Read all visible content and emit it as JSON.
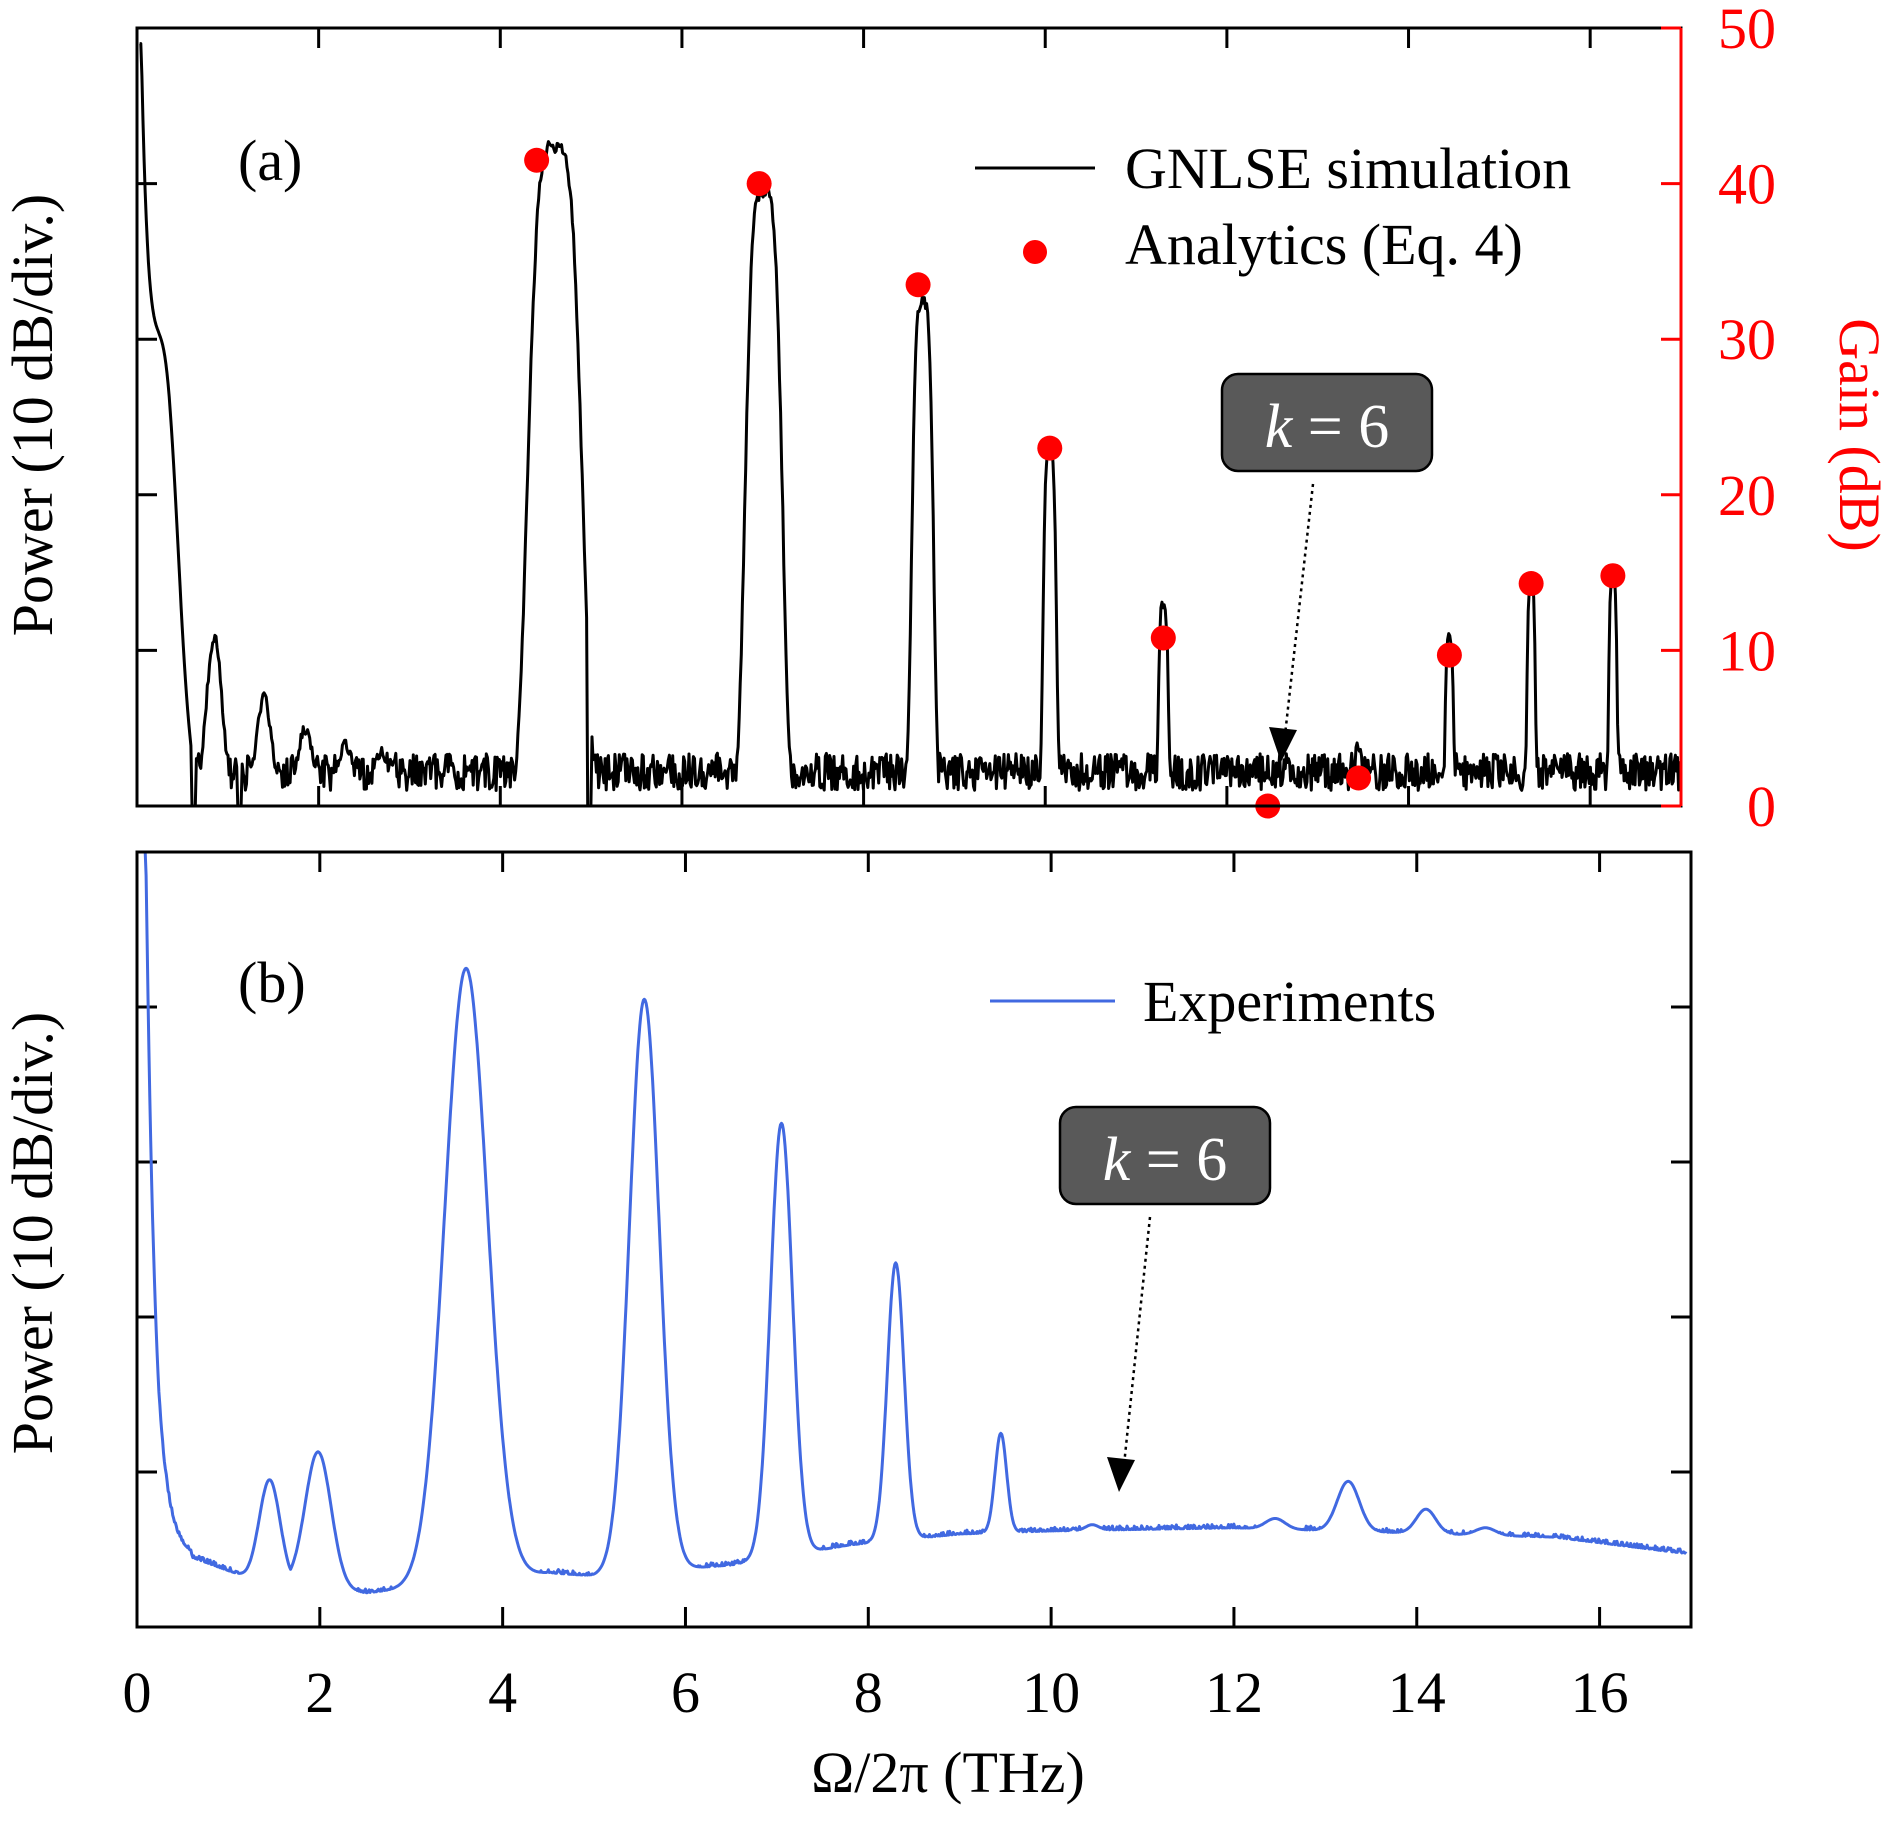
{
  "chart_data": [
    {
      "panel": "(a)",
      "type": "line",
      "xlim": [
        0,
        17
      ],
      "ylim": [
        0,
        50
      ],
      "ylabel": "Power (10 dB/div.)",
      "y2label": "Gain (dB)",
      "y2_ticks": [
        "0",
        "10",
        "20",
        "30",
        "40",
        "50"
      ],
      "grid": false,
      "legend": "top-right",
      "colors": {
        "simulation": "#000000",
        "analytics": "#ff0000",
        "right_axis": "#ff0000"
      },
      "series": [
        {
          "name": "GNLSE simulation",
          "kind": "line",
          "baseline": 1.0,
          "start": {
            "x": 0.03,
            "y": 48
          },
          "peaks": [
            {
              "x": 4.6,
              "y": 42,
              "w": 0.32
            },
            {
              "x": 6.9,
              "y": 39,
              "w": 0.22
            },
            {
              "x": 8.65,
              "y": 32,
              "w": 0.13
            },
            {
              "x": 10.05,
              "y": 22.5,
              "w": 0.08
            },
            {
              "x": 11.3,
              "y": 12.5,
              "w": 0.06
            },
            {
              "x": 12.45,
              "y": 1.8,
              "w": 0.05
            },
            {
              "x": 13.45,
              "y": 3.5,
              "w": 0.05
            },
            {
              "x": 14.45,
              "y": 10.5,
              "w": 0.05
            },
            {
              "x": 15.35,
              "y": 14,
              "w": 0.05
            },
            {
              "x": 16.25,
              "y": 14.5,
              "w": 0.05
            }
          ],
          "side_lobes": [
            {
              "x": 0.85,
              "y": 10.5
            },
            {
              "x": 1.4,
              "y": 6.5
            },
            {
              "x": 1.85,
              "y": 4.5
            },
            {
              "x": 2.3,
              "y": 3.5
            },
            {
              "x": 2.7,
              "y": 3
            }
          ]
        },
        {
          "name": "Analytics (Eq. 4)",
          "kind": "scatter",
          "x": [
            4.4,
            6.85,
            8.6,
            10.05,
            11.3,
            12.45,
            13.45,
            14.45,
            15.35,
            16.25
          ],
          "y": [
            41.5,
            40.0,
            33.5,
            23.0,
            10.8,
            0.0,
            1.8,
            9.7,
            14.3,
            14.8
          ]
        }
      ],
      "annotation": {
        "text": "k = 6",
        "target": {
          "x": 12.45,
          "y": 2.0
        }
      }
    },
    {
      "panel": "(b)",
      "type": "line",
      "xlim": [
        0,
        17
      ],
      "ylim": [
        0,
        50
      ],
      "xlabel": "Ω/2π (THz)",
      "ylabel": "Power (10 dB/div.)",
      "x_ticks": [
        "0",
        "2",
        "4",
        "6",
        "8",
        "10",
        "12",
        "14",
        "16"
      ],
      "grid": false,
      "legend": "top-right",
      "colors": {
        "experiments": "#4169e1"
      },
      "series": [
        {
          "name": "Experiments",
          "kind": "line",
          "start": {
            "x": 0.08,
            "y": 50
          },
          "peaks": [
            {
              "x": 1.45,
              "y": 9.5,
              "w": 0.16
            },
            {
              "x": 1.98,
              "y": 11.3,
              "w": 0.2
            },
            {
              "x": 3.6,
              "y": 42.5,
              "w": 0.33
            },
            {
              "x": 5.55,
              "y": 40.5,
              "w": 0.23
            },
            {
              "x": 7.05,
              "y": 32.5,
              "w": 0.17
            },
            {
              "x": 8.3,
              "y": 23.5,
              "w": 0.13
            },
            {
              "x": 9.45,
              "y": 12.5,
              "w": 0.09
            },
            {
              "x": 10.45,
              "y": 6.6,
              "w": 0.1
            },
            {
              "x": 12.45,
              "y": 7.0,
              "w": 0.15
            },
            {
              "x": 13.25,
              "y": 9.4,
              "w": 0.17
            },
            {
              "x": 14.1,
              "y": 7.6,
              "w": 0.15
            },
            {
              "x": 14.75,
              "y": 6.4,
              "w": 0.15
            }
          ],
          "floor": [
            {
              "x": 0.6,
              "y": 4.5
            },
            {
              "x": 1.2,
              "y": 3.2
            },
            {
              "x": 2.5,
              "y": 2.2
            },
            {
              "x": 3.0,
              "y": 2.5
            },
            {
              "x": 4.5,
              "y": 3.5
            },
            {
              "x": 5.0,
              "y": 3.3
            },
            {
              "x": 6.5,
              "y": 4.0
            },
            {
              "x": 7.8,
              "y": 5.3
            },
            {
              "x": 9.0,
              "y": 6.0
            },
            {
              "x": 10.0,
              "y": 6.2
            },
            {
              "x": 11.0,
              "y": 6.3
            },
            {
              "x": 12.0,
              "y": 6.4
            },
            {
              "x": 15.5,
              "y": 5.8
            },
            {
              "x": 17.0,
              "y": 4.7
            }
          ]
        }
      ],
      "annotation": {
        "text": "k = 6",
        "target": {
          "x": 10.75,
          "y": 6.8
        }
      }
    }
  ],
  "labels": {
    "panel_a": "(a)",
    "panel_b": "(b)",
    "legend_sim": "GNLSE simulation",
    "legend_ana": "Analytics (Eq. 4)",
    "legend_exp": "Experiments",
    "ylabel_a": "Power (10 dB/div.)",
    "ylabel_b": "Power (10 dB/div.)",
    "y2label": "Gain (dB)",
    "xlabel": "Ω/2π (THz)",
    "k_letter": "k",
    "k_rest": " = 6"
  }
}
